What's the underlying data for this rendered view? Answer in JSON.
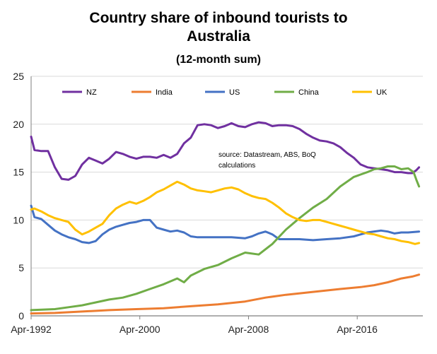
{
  "title_line1": "Country share of inbound tourists to",
  "title_line2": "Australia",
  "subtitle": "(12-month sum)",
  "annotation_line1": "source: Datastream, ABS, BoQ",
  "annotation_line2": "calculations",
  "chart_data": {
    "type": "line",
    "title": "Country share of inbound tourists to Australia",
    "subtitle": "(12-month sum)",
    "xlabel": "",
    "ylabel": "",
    "ylim": [
      0,
      25
    ],
    "y_ticks": [
      0,
      5,
      10,
      15,
      20,
      25
    ],
    "xlim": [
      1992.25,
      2021.08
    ],
    "x_ticks": [
      {
        "x": 1992.25,
        "label": "Apr-1992"
      },
      {
        "x": 2000.25,
        "label": "Apr-2000"
      },
      {
        "x": 2008.25,
        "label": "Apr-2008"
      },
      {
        "x": 2016.25,
        "label": "Apr-2016"
      }
    ],
    "grid": "horizontal",
    "legend_position": "top",
    "series": [
      {
        "name": "NZ",
        "color": "#7030A0",
        "points": [
          [
            1992.25,
            18.7
          ],
          [
            1992.5,
            17.3
          ],
          [
            1993.0,
            17.2
          ],
          [
            1993.5,
            17.2
          ],
          [
            1994.0,
            15.5
          ],
          [
            1994.5,
            14.3
          ],
          [
            1995.0,
            14.2
          ],
          [
            1995.5,
            14.6
          ],
          [
            1996.0,
            15.8
          ],
          [
            1996.5,
            16.5
          ],
          [
            1997.0,
            16.2
          ],
          [
            1997.5,
            15.9
          ],
          [
            1998.0,
            16.4
          ],
          [
            1998.5,
            17.1
          ],
          [
            1999.0,
            16.9
          ],
          [
            1999.5,
            16.6
          ],
          [
            2000.0,
            16.4
          ],
          [
            2000.5,
            16.6
          ],
          [
            2001.0,
            16.6
          ],
          [
            2001.5,
            16.5
          ],
          [
            2002.0,
            16.8
          ],
          [
            2002.5,
            16.5
          ],
          [
            2003.0,
            16.9
          ],
          [
            2003.5,
            18.0
          ],
          [
            2004.0,
            18.6
          ],
          [
            2004.5,
            19.9
          ],
          [
            2005.0,
            20.0
          ],
          [
            2005.5,
            19.9
          ],
          [
            2006.0,
            19.6
          ],
          [
            2006.5,
            19.8
          ],
          [
            2007.0,
            20.1
          ],
          [
            2007.5,
            19.8
          ],
          [
            2008.0,
            19.7
          ],
          [
            2008.5,
            20.0
          ],
          [
            2009.0,
            20.2
          ],
          [
            2009.5,
            20.1
          ],
          [
            2010.0,
            19.8
          ],
          [
            2010.5,
            19.9
          ],
          [
            2011.0,
            19.9
          ],
          [
            2011.5,
            19.8
          ],
          [
            2012.0,
            19.5
          ],
          [
            2012.5,
            19.0
          ],
          [
            2013.0,
            18.6
          ],
          [
            2013.5,
            18.3
          ],
          [
            2014.0,
            18.2
          ],
          [
            2014.5,
            18.0
          ],
          [
            2015.0,
            17.6
          ],
          [
            2015.5,
            17.0
          ],
          [
            2016.0,
            16.5
          ],
          [
            2016.5,
            15.8
          ],
          [
            2017.0,
            15.5
          ],
          [
            2017.5,
            15.4
          ],
          [
            2018.0,
            15.3
          ],
          [
            2018.5,
            15.2
          ],
          [
            2019.0,
            15.0
          ],
          [
            2019.5,
            15.0
          ],
          [
            2020.0,
            14.9
          ],
          [
            2020.3,
            14.9
          ],
          [
            2020.6,
            15.2
          ],
          [
            2020.8,
            15.5
          ]
        ]
      },
      {
        "name": "India",
        "color": "#ED7D31",
        "points": [
          [
            1992.25,
            0.25
          ],
          [
            1994.0,
            0.3
          ],
          [
            1996.0,
            0.45
          ],
          [
            1998.0,
            0.6
          ],
          [
            2000.0,
            0.7
          ],
          [
            2002.0,
            0.8
          ],
          [
            2004.0,
            1.0
          ],
          [
            2006.0,
            1.2
          ],
          [
            2008.0,
            1.5
          ],
          [
            2009.5,
            1.9
          ],
          [
            2011.0,
            2.2
          ],
          [
            2013.0,
            2.5
          ],
          [
            2015.0,
            2.8
          ],
          [
            2016.5,
            3.0
          ],
          [
            2017.5,
            3.2
          ],
          [
            2018.5,
            3.5
          ],
          [
            2019.5,
            3.9
          ],
          [
            2020.3,
            4.1
          ],
          [
            2020.8,
            4.3
          ]
        ]
      },
      {
        "name": "US",
        "color": "#4472C4",
        "points": [
          [
            1992.25,
            11.5
          ],
          [
            1992.5,
            10.3
          ],
          [
            1993.0,
            10.1
          ],
          [
            1993.5,
            9.5
          ],
          [
            1994.0,
            8.9
          ],
          [
            1994.5,
            8.5
          ],
          [
            1995.0,
            8.2
          ],
          [
            1995.5,
            8.0
          ],
          [
            1996.0,
            7.7
          ],
          [
            1996.5,
            7.6
          ],
          [
            1997.0,
            7.8
          ],
          [
            1997.5,
            8.5
          ],
          [
            1998.0,
            9.0
          ],
          [
            1998.5,
            9.3
          ],
          [
            1999.0,
            9.5
          ],
          [
            1999.5,
            9.7
          ],
          [
            2000.0,
            9.8
          ],
          [
            2000.5,
            10.0
          ],
          [
            2001.0,
            10.0
          ],
          [
            2001.5,
            9.2
          ],
          [
            2002.0,
            9.0
          ],
          [
            2002.5,
            8.8
          ],
          [
            2003.0,
            8.9
          ],
          [
            2003.5,
            8.7
          ],
          [
            2004.0,
            8.3
          ],
          [
            2004.5,
            8.2
          ],
          [
            2005.0,
            8.2
          ],
          [
            2006.0,
            8.2
          ],
          [
            2007.0,
            8.2
          ],
          [
            2008.0,
            8.1
          ],
          [
            2008.5,
            8.3
          ],
          [
            2009.0,
            8.6
          ],
          [
            2009.5,
            8.8
          ],
          [
            2010.0,
            8.5
          ],
          [
            2010.5,
            8.0
          ],
          [
            2011.0,
            8.0
          ],
          [
            2012.0,
            8.0
          ],
          [
            2013.0,
            7.9
          ],
          [
            2014.0,
            8.0
          ],
          [
            2015.0,
            8.1
          ],
          [
            2016.0,
            8.3
          ],
          [
            2017.0,
            8.7
          ],
          [
            2018.0,
            8.9
          ],
          [
            2018.5,
            8.8
          ],
          [
            2019.0,
            8.6
          ],
          [
            2019.5,
            8.7
          ],
          [
            2020.0,
            8.7
          ],
          [
            2020.8,
            8.8
          ]
        ]
      },
      {
        "name": "China",
        "color": "#70AD47",
        "points": [
          [
            1992.25,
            0.6
          ],
          [
            1994.0,
            0.7
          ],
          [
            1995.0,
            0.9
          ],
          [
            1996.0,
            1.1
          ],
          [
            1997.0,
            1.4
          ],
          [
            1998.0,
            1.7
          ],
          [
            1999.0,
            1.9
          ],
          [
            2000.0,
            2.3
          ],
          [
            2001.0,
            2.8
          ],
          [
            2002.0,
            3.3
          ],
          [
            2003.0,
            3.9
          ],
          [
            2003.5,
            3.5
          ],
          [
            2004.0,
            4.2
          ],
          [
            2005.0,
            4.9
          ],
          [
            2006.0,
            5.3
          ],
          [
            2007.0,
            6.0
          ],
          [
            2008.0,
            6.6
          ],
          [
            2009.0,
            6.4
          ],
          [
            2010.0,
            7.5
          ],
          [
            2011.0,
            9.0
          ],
          [
            2012.0,
            10.2
          ],
          [
            2013.0,
            11.3
          ],
          [
            2014.0,
            12.2
          ],
          [
            2015.0,
            13.5
          ],
          [
            2016.0,
            14.5
          ],
          [
            2017.0,
            15.0
          ],
          [
            2017.5,
            15.3
          ],
          [
            2018.0,
            15.4
          ],
          [
            2018.5,
            15.6
          ],
          [
            2019.0,
            15.6
          ],
          [
            2019.5,
            15.3
          ],
          [
            2020.0,
            15.4
          ],
          [
            2020.4,
            15.0
          ],
          [
            2020.6,
            14.2
          ],
          [
            2020.8,
            13.5
          ]
        ]
      },
      {
        "name": "UK",
        "color": "#FFC000",
        "points": [
          [
            1992.25,
            11.1
          ],
          [
            1992.5,
            11.2
          ],
          [
            1993.0,
            10.9
          ],
          [
            1993.5,
            10.5
          ],
          [
            1994.0,
            10.2
          ],
          [
            1994.5,
            10.0
          ],
          [
            1995.0,
            9.8
          ],
          [
            1995.5,
            9.0
          ],
          [
            1996.0,
            8.5
          ],
          [
            1996.5,
            8.8
          ],
          [
            1997.0,
            9.2
          ],
          [
            1997.5,
            9.6
          ],
          [
            1998.0,
            10.5
          ],
          [
            1998.5,
            11.2
          ],
          [
            1999.0,
            11.6
          ],
          [
            1999.5,
            11.9
          ],
          [
            2000.0,
            11.7
          ],
          [
            2000.5,
            12.0
          ],
          [
            2001.0,
            12.4
          ],
          [
            2001.5,
            12.9
          ],
          [
            2002.0,
            13.2
          ],
          [
            2002.5,
            13.6
          ],
          [
            2003.0,
            14.0
          ],
          [
            2003.5,
            13.7
          ],
          [
            2004.0,
            13.3
          ],
          [
            2004.5,
            13.1
          ],
          [
            2005.0,
            13.0
          ],
          [
            2005.5,
            12.9
          ],
          [
            2006.0,
            13.1
          ],
          [
            2006.5,
            13.3
          ],
          [
            2007.0,
            13.4
          ],
          [
            2007.5,
            13.2
          ],
          [
            2008.0,
            12.8
          ],
          [
            2008.5,
            12.5
          ],
          [
            2009.0,
            12.3
          ],
          [
            2009.5,
            12.2
          ],
          [
            2010.0,
            11.8
          ],
          [
            2010.5,
            11.3
          ],
          [
            2011.0,
            10.7
          ],
          [
            2011.5,
            10.3
          ],
          [
            2012.0,
            10.0
          ],
          [
            2012.5,
            9.9
          ],
          [
            2013.0,
            10.0
          ],
          [
            2013.5,
            10.0
          ],
          [
            2014.0,
            9.8
          ],
          [
            2014.5,
            9.6
          ],
          [
            2015.0,
            9.4
          ],
          [
            2015.5,
            9.2
          ],
          [
            2016.0,
            9.0
          ],
          [
            2016.5,
            8.8
          ],
          [
            2017.0,
            8.6
          ],
          [
            2017.5,
            8.5
          ],
          [
            2018.0,
            8.3
          ],
          [
            2018.5,
            8.1
          ],
          [
            2019.0,
            8.0
          ],
          [
            2019.5,
            7.8
          ],
          [
            2020.0,
            7.7
          ],
          [
            2020.5,
            7.5
          ],
          [
            2020.8,
            7.6
          ]
        ]
      }
    ]
  }
}
